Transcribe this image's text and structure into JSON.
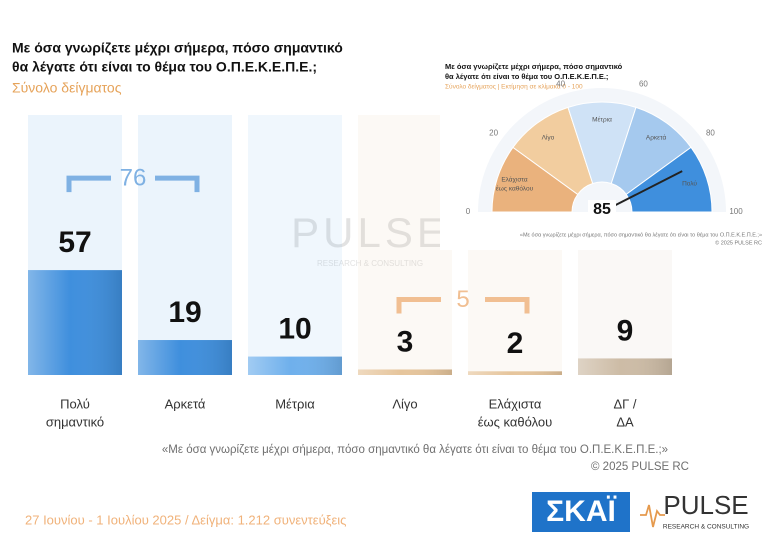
{
  "chart_data": [
    {
      "type": "bar",
      "title": [
        "Με όσα γνωρίζετε μέχρι σήμερα, πόσο σημαντικό",
        "θα λέγατε ότι είναι το θέμα του  Ο.Π.Ε.Κ.Ε.Π.Ε.;"
      ],
      "subtitle": "Σύνολο δείγματος",
      "categories": [
        [
          "Πολύ",
          "σημαντικό"
        ],
        [
          "Αρκετά"
        ],
        [
          "Μέτρια"
        ],
        [
          "Λίγο"
        ],
        [
          "Ελάχιστα",
          "έως καθόλου"
        ],
        [
          "ΔΓ /",
          "ΔΑ"
        ]
      ],
      "values": [
        57,
        19,
        10,
        3,
        2,
        9
      ],
      "colors": [
        "#3f8fdd",
        "#3f8fdd",
        "#6fb0ec",
        "#e6c59c",
        "#e6c59c",
        "#cdbca6"
      ],
      "ylim": [
        0,
        100
      ],
      "annotations": [
        {
          "value": 76,
          "from": 0,
          "to": 1,
          "color": "#7fb1e3"
        },
        {
          "value": 5,
          "from": 3,
          "to": 4,
          "color": "#f1bf92"
        }
      ],
      "note": "«Με όσα γνωρίζετε μέχρι σήμερα, πόσο σημαντικό θα λέγατε ότι είναι το θέμα του Ο.Π.Ε.Κ.Ε.Π.Ε.;»",
      "source": "©  2025  PULSE RC"
    },
    {
      "type": "gauge",
      "title": [
        "Με όσα γνωρίζετε μέχρι σήμερα, πόσο σημαντικό",
        "θα λέγατε ότι είναι το θέμα του  Ο.Π.Ε.Κ.Ε.Π.Ε.;"
      ],
      "subtitle": "Σύνολο δείγματος  |  Εκτίμηση σε κλίμακα 0 - 100",
      "value": 85,
      "ylim": [
        0,
        100
      ],
      "yticks": [
        0,
        20,
        40,
        60,
        80,
        100
      ],
      "bands": [
        {
          "label": [
            "Ελάχιστα",
            "έως καθόλου"
          ],
          "from": 0,
          "to": 20,
          "color": "#eab27d"
        },
        {
          "label": [
            "Λίγο"
          ],
          "from": 20,
          "to": 40,
          "color": "#f2cd9f"
        },
        {
          "label": [
            "Μέτρια"
          ],
          "from": 40,
          "to": 60,
          "color": "#cfe2f6"
        },
        {
          "label": [
            "Αρκετά"
          ],
          "from": 60,
          "to": 80,
          "color": "#a5c9ee"
        },
        {
          "label": [
            "Πολύ"
          ],
          "from": 80,
          "to": 100,
          "color": "#3f8fdd"
        }
      ],
      "note": "«Με όσα γνωρίζετε μέχρι σήμερα, πόσο σημαντικό θα λέγατε ότι είναι το θέμα του Ο.Π.Ε.Κ.Ε.Π.Ε.;»",
      "source": "© 2025  PULSE RC"
    }
  ],
  "footer": "27 Ιουνίου - 1 Ιουλίου 2025  /  Δείγμα:  1.212 συνεντεύξεις",
  "logos": {
    "skai": "ΣΚΑΪ",
    "pulse": "PULSE",
    "pulse_sub": "RESEARCH & CONSULTING"
  }
}
